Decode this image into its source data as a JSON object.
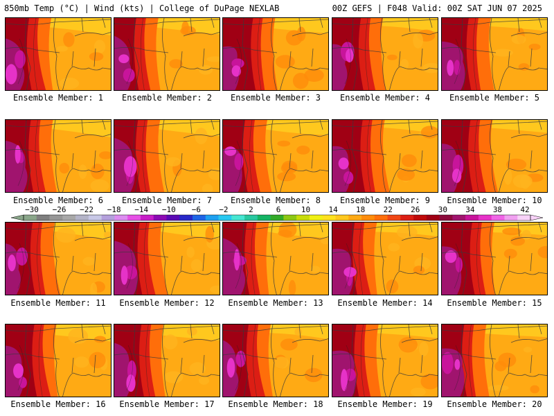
{
  "header": {
    "left": "850mb Temp (°C) | Wind (kts) | College of DuPage NEXLAB",
    "right": "00Z GEFS | F048 Valid: 00Z SAT JUN 07 2025"
  },
  "label_prefix": "Ensemble Member: ",
  "panels": [
    {
      "member": 1,
      "label": "Ensemble Member: 1"
    },
    {
      "member": 2,
      "label": "Ensemble Member: 2"
    },
    {
      "member": 3,
      "label": "Ensemble Member: 3"
    },
    {
      "member": 4,
      "label": "Ensemble Member: 4"
    },
    {
      "member": 5,
      "label": "Ensemble Member: 5"
    },
    {
      "member": 6,
      "label": "Ensemble Member: 6"
    },
    {
      "member": 7,
      "label": "Ensemble Member: 7"
    },
    {
      "member": 8,
      "label": "Ensemble Member: 8"
    },
    {
      "member": 9,
      "label": "Ensemble Member: 9"
    },
    {
      "member": 10,
      "label": "Ensemble Member: 10"
    },
    {
      "member": 11,
      "label": "Ensemble Member: 11"
    },
    {
      "member": 12,
      "label": "Ensemble Member: 12"
    },
    {
      "member": 13,
      "label": "Ensemble Member: 13"
    },
    {
      "member": 14,
      "label": "Ensemble Member: 14"
    },
    {
      "member": 15,
      "label": "Ensemble Member: 15"
    },
    {
      "member": 16,
      "label": "Ensemble Member: 16"
    },
    {
      "member": 17,
      "label": "Ensemble Member: 17"
    },
    {
      "member": 18,
      "label": "Ensemble Member: 18"
    },
    {
      "member": 19,
      "label": "Ensemble Member: 19"
    },
    {
      "member": 20,
      "label": "Ensemble Member: 20"
    }
  ],
  "colorbar": {
    "tick_labels": [
      "−30",
      "−26",
      "−22",
      "−18",
      "−14",
      "−10",
      "−6",
      "−2",
      "2",
      "6",
      "10",
      "14",
      "18",
      "22",
      "26",
      "30",
      "34",
      "38",
      "42"
    ],
    "colors": [
      "#8aa68a",
      "#7f7f7f",
      "#969696",
      "#a8a8a8",
      "#b4b4c8",
      "#c8c8e6",
      "#b4a0dc",
      "#dc8cf0",
      "#e650e6",
      "#c81ec8",
      "#8c0ab4",
      "#5a0ab4",
      "#2828c8",
      "#1e64e6",
      "#1ea0f0",
      "#28c8f0",
      "#46e6d2",
      "#28c8a0",
      "#14b464",
      "#32aa28",
      "#8cc814",
      "#c8dc0a",
      "#f0f014",
      "#ffe11e",
      "#ffc81e",
      "#ffaa14",
      "#ff8c0a",
      "#ff6e0a",
      "#f04614",
      "#dc1e14",
      "#c00a0a",
      "#a00014",
      "#8c0a3c",
      "#a0146e",
      "#c8149b",
      "#e632c8",
      "#f064e6",
      "#f0a0f0",
      "#f8d2f8"
    ]
  }
}
